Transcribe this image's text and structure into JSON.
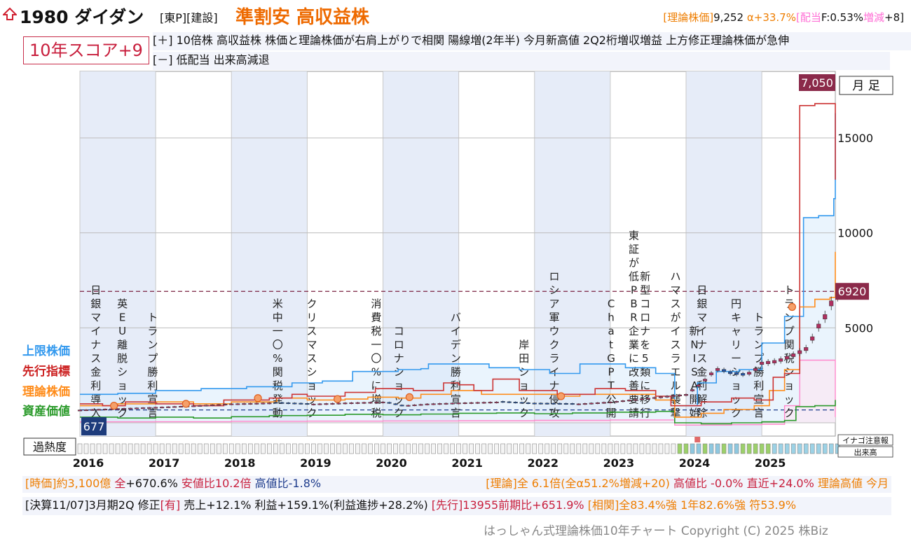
{
  "header": {
    "code_name": "1980 ダイダン",
    "market": "[東P][建設]",
    "tagline": "準割安 高収益株",
    "theory_label": "[理論株価]",
    "theory_value": "9,252",
    "alpha": "α+33.7%",
    "dividend_label": "[配当",
    "dividend_value": "F:0.53%",
    "change_label": "増減",
    "change_value": "+8]"
  },
  "score": "10年スコア+9",
  "plus_line": "[＋] 10倍株 高収益株 株価と理論株価が右肩上がりで相関 陽線増(2年半) 今月新高値 2Q2桁増収増益 上方修正理論株価が急伸",
  "minus_line": "[－] 低配当 出来高減退",
  "legend": {
    "upper": "上限株価",
    "leading": "先行指標",
    "theory": "理論株価",
    "asset": "資産価値",
    "overheat": "過熱度",
    "inago": "イナゴ注意報",
    "volume": "出来高",
    "period": "月 足"
  },
  "colors": {
    "upper": "#3399ee",
    "leading": "#cc3333",
    "theory": "#ff8c1a",
    "asset": "#2a9a2a",
    "dividend_line": "#ff88cc",
    "candle_up": "#b03060",
    "candle_down": "#2255aa"
  },
  "bottom": {
    "market_cap": "[時価]約3,100億",
    "all_label": "全",
    "all_value": "+670.6%",
    "value_ratio": "安値比10.2倍",
    "high_ratio": "高値比-1.8%",
    "theory_all": "[理論]全 6.1倍(全α51.2%増減+20)",
    "theory_high": "高値比 -0.0%",
    "recent": "直近+24.0%",
    "theory_peak": "理論高値 今月",
    "settlement": "[決算11/07]3月期2Q 修正",
    "settlement_flag": "[有]",
    "sales": "売上+12.1% 利益+159.1%(利益進捗+28.2%)",
    "leading": "[先行]13955前期比+651.9%",
    "correlation": "[相関]全83.4%強 1年82.6%強 符53.9%"
  },
  "copyright": "はっしゃん式理論株価10年チャート Copyright (C) 2025 株Biz",
  "chart_data": {
    "type": "line",
    "period": "monthly",
    "x_tick_labels": [
      "2016",
      "2017",
      "2018",
      "2019",
      "2020",
      "2021",
      "2022",
      "2023",
      "2024",
      "2025"
    ],
    "y_ticks": [
      5000,
      10000,
      15000
    ],
    "y_tick_labels": [
      "5000",
      "10000",
      "15000"
    ],
    "ylim": [
      -700,
      18500
    ],
    "current_price": 6920,
    "current_label": "6920",
    "max_label": "7,050",
    "min_label": "677",
    "annotations": [
      {
        "t": 2016.1,
        "text": "日銀マイナス金利導入"
      },
      {
        "t": 2016.45,
        "text": "英EU離脱ショック"
      },
      {
        "t": 2016.85,
        "text": "トランプ勝利宣言"
      },
      {
        "t": 2018.5,
        "text": "米中一〇%関税発動"
      },
      {
        "t": 2018.95,
        "text": "クリスマスショック"
      },
      {
        "t": 2019.8,
        "text": "消費税一〇%に増税"
      },
      {
        "t": 2020.1,
        "text": "コロナショック"
      },
      {
        "t": 2020.85,
        "text": "バイデン勝利宣言"
      },
      {
        "t": 2021.75,
        "text": "岸田ショック"
      },
      {
        "t": 2022.15,
        "text": "ロシア軍ウクライナ侵攻"
      },
      {
        "t": 2022.9,
        "text": "ChatGPT公開"
      },
      {
        "t": 2023.2,
        "text": "東証が低PBR企業に改善要請"
      },
      {
        "t": 2023.35,
        "text": "新型コロナを5類に移行"
      },
      {
        "t": 2023.75,
        "text": "ハマスがイスラエル襲撃"
      },
      {
        "t": 2024.0,
        "text": "新NISA開始"
      },
      {
        "t": 2024.1,
        "text": "日銀マイナス金利解除"
      },
      {
        "t": 2024.55,
        "text": "円キャリーショック"
      },
      {
        "t": 2024.85,
        "text": "トランプ勝利宣言"
      },
      {
        "t": 2025.25,
        "text": "トランプ関税ショック"
      }
    ],
    "series": [
      {
        "name": "上限株価",
        "points": [
          [
            2016.0,
            1500
          ],
          [
            2016.5,
            1550
          ],
          [
            2017.0,
            1700
          ],
          [
            2017.6,
            1800
          ],
          [
            2018.2,
            1900
          ],
          [
            2018.8,
            2100
          ],
          [
            2019.2,
            2200
          ],
          [
            2019.6,
            2700
          ],
          [
            2020.2,
            2800
          ],
          [
            2020.5,
            2850
          ],
          [
            2020.6,
            3100
          ],
          [
            2021.0,
            3100
          ],
          [
            2021.4,
            2900
          ],
          [
            2021.8,
            2800
          ],
          [
            2022.2,
            2600
          ],
          [
            2022.6,
            3100
          ],
          [
            2023.2,
            2900
          ],
          [
            2023.6,
            2600
          ],
          [
            2023.85,
            900
          ],
          [
            2024.15,
            2100
          ],
          [
            2024.4,
            2700
          ],
          [
            2024.7,
            2800
          ],
          [
            2025.0,
            4200
          ],
          [
            2025.3,
            5600
          ],
          [
            2025.55,
            10800
          ],
          [
            2025.75,
            10900
          ],
          [
            2025.95,
            11800
          ],
          [
            2025.97,
            16300
          ]
        ]
      },
      {
        "name": "先行指標",
        "points": [
          [
            2016.0,
            1000
          ],
          [
            2016.3,
            900
          ],
          [
            2016.6,
            1100
          ],
          [
            2017.0,
            1000
          ],
          [
            2017.5,
            900
          ],
          [
            2017.9,
            1200
          ],
          [
            2018.5,
            1300
          ],
          [
            2018.8,
            1500
          ],
          [
            2019.0,
            1400
          ],
          [
            2019.5,
            1600
          ],
          [
            2019.9,
            1800
          ],
          [
            2020.4,
            1700
          ],
          [
            2020.8,
            2100
          ],
          [
            2021.0,
            2000
          ],
          [
            2021.2,
            1700
          ],
          [
            2021.45,
            2300
          ],
          [
            2021.8,
            1700
          ],
          [
            2022.3,
            1500
          ],
          [
            2022.8,
            1800
          ],
          [
            2023.2,
            1700
          ],
          [
            2023.6,
            1400
          ],
          [
            2023.8,
            900
          ],
          [
            2024.2,
            1100
          ],
          [
            2024.6,
            1300
          ],
          [
            2024.9,
            1200
          ],
          [
            2025.15,
            2400
          ],
          [
            2025.3,
            2600
          ],
          [
            2025.5,
            16700
          ],
          [
            2025.7,
            16800
          ],
          [
            2025.97,
            12800
          ]
        ]
      },
      {
        "name": "理論株価",
        "points": [
          [
            2016.0,
            900
          ],
          [
            2016.5,
            1000
          ],
          [
            2017.0,
            1100
          ],
          [
            2017.5,
            1000
          ],
          [
            2018.0,
            1100
          ],
          [
            2018.6,
            1300
          ],
          [
            2019.0,
            1200
          ],
          [
            2019.5,
            1250
          ],
          [
            2019.8,
            1350
          ],
          [
            2020.2,
            1300
          ],
          [
            2020.5,
            1500
          ],
          [
            2020.9,
            1700
          ],
          [
            2021.3,
            1500
          ],
          [
            2021.8,
            1500
          ],
          [
            2022.3,
            1400
          ],
          [
            2022.6,
            1500
          ],
          [
            2023.1,
            1500
          ],
          [
            2023.6,
            1200
          ],
          [
            2023.85,
            300
          ],
          [
            2024.2,
            500
          ],
          [
            2024.5,
            700
          ],
          [
            2024.9,
            900
          ],
          [
            2025.1,
            1700
          ],
          [
            2025.3,
            2800
          ],
          [
            2025.5,
            6100
          ],
          [
            2025.7,
            6500
          ],
          [
            2025.9,
            6600
          ],
          [
            2025.97,
            9000
          ]
        ]
      },
      {
        "name": "資産価値",
        "points": [
          [
            2016.0,
            300
          ],
          [
            2016.5,
            250
          ],
          [
            2017.0,
            300
          ],
          [
            2017.5,
            250
          ],
          [
            2018.0,
            320
          ],
          [
            2018.5,
            380
          ],
          [
            2019.0,
            400
          ],
          [
            2019.5,
            450
          ],
          [
            2020.0,
            420
          ],
          [
            2020.5,
            460
          ],
          [
            2021.0,
            500
          ],
          [
            2021.5,
            520
          ],
          [
            2022.0,
            480
          ],
          [
            2022.5,
            520
          ],
          [
            2023.0,
            560
          ],
          [
            2023.6,
            600
          ],
          [
            2023.85,
            0
          ],
          [
            2024.2,
            -50
          ],
          [
            2024.6,
            0
          ],
          [
            2025.0,
            50
          ],
          [
            2025.3,
            120
          ],
          [
            2025.45,
            850
          ],
          [
            2025.7,
            900
          ],
          [
            2025.97,
            1200
          ]
        ]
      },
      {
        "name": "配当",
        "points": [
          [
            2016.0,
            50
          ],
          [
            2017.0,
            60
          ],
          [
            2018.0,
            80
          ],
          [
            2019.0,
            90
          ],
          [
            2020.0,
            100
          ],
          [
            2021.0,
            110
          ],
          [
            2022.0,
            130
          ],
          [
            2023.0,
            150
          ],
          [
            2023.85,
            -120
          ],
          [
            2024.6,
            -100
          ],
          [
            2025.0,
            -80
          ],
          [
            2025.3,
            900
          ],
          [
            2025.5,
            3300
          ],
          [
            2025.8,
            3300
          ],
          [
            2025.97,
            300
          ]
        ]
      },
      {
        "name": "株価",
        "points": [
          [
            2016.0,
            677
          ],
          [
            2016.5,
            750
          ],
          [
            2017.0,
            820
          ],
          [
            2017.5,
            900
          ],
          [
            2018.0,
            1000
          ],
          [
            2018.5,
            1050
          ],
          [
            2019.0,
            980
          ],
          [
            2019.5,
            1050
          ],
          [
            2020.0,
            1100
          ],
          [
            2020.25,
            900
          ],
          [
            2020.6,
            1000
          ],
          [
            2021.0,
            1050
          ],
          [
            2021.5,
            1100
          ],
          [
            2022.0,
            1000
          ],
          [
            2022.5,
            980
          ],
          [
            2023.0,
            1100
          ],
          [
            2023.5,
            1300
          ],
          [
            2023.85,
            1450
          ],
          [
            2024.0,
            1500
          ],
          [
            2024.2,
            2100
          ],
          [
            2024.3,
            2500
          ],
          [
            2024.4,
            2900
          ],
          [
            2024.55,
            2600
          ],
          [
            2024.75,
            2500
          ],
          [
            2024.9,
            2800
          ],
          [
            2025.0,
            3200
          ],
          [
            2025.2,
            3300
          ],
          [
            2025.4,
            3600
          ],
          [
            2025.6,
            4000
          ],
          [
            2025.75,
            5200
          ],
          [
            2025.85,
            5800
          ],
          [
            2025.97,
            6920
          ]
        ]
      }
    ],
    "shaded_years": [
      2016,
      2018,
      2020,
      2022,
      2024
    ],
    "crossings": [
      [
        2016.45,
        900
      ],
      [
        2017.4,
        1000
      ],
      [
        2018.35,
        1300
      ],
      [
        2019.4,
        1250
      ],
      [
        2020.35,
        1350
      ],
      [
        2022.35,
        1400
      ],
      [
        2025.4,
        6100
      ]
    ],
    "xlim": [
      2016.0,
      2025.97
    ]
  }
}
